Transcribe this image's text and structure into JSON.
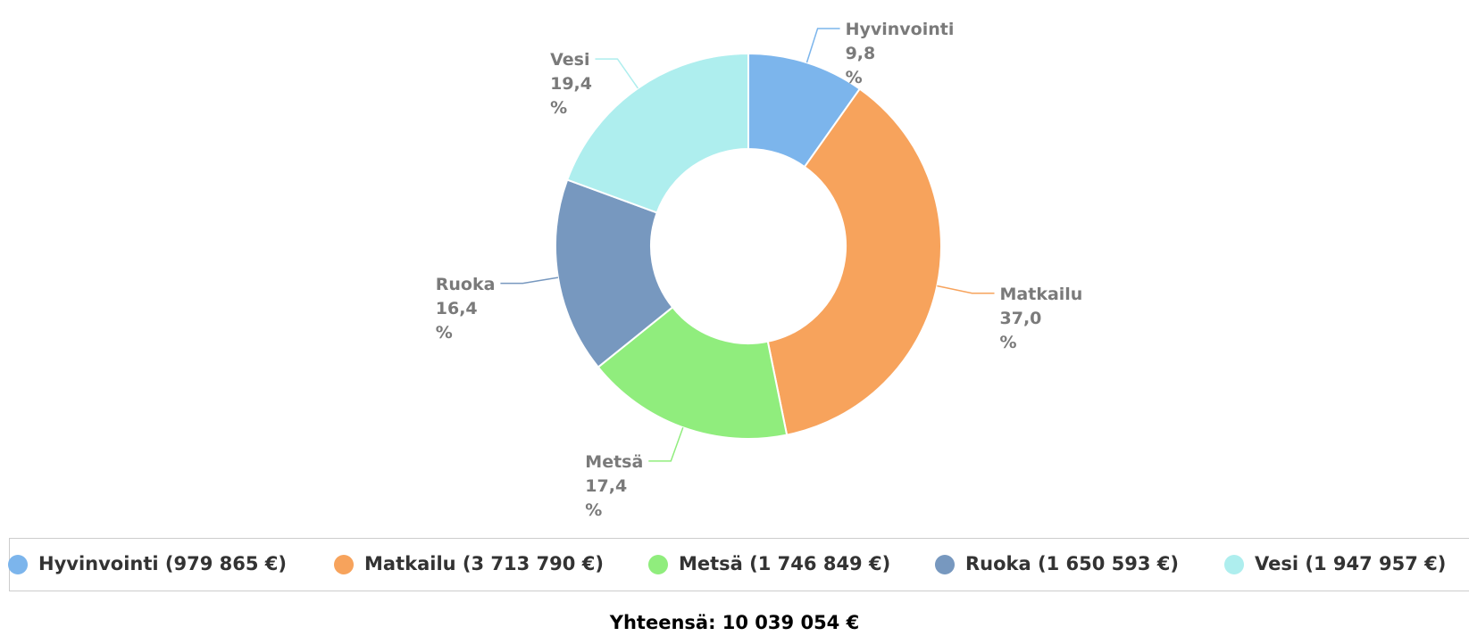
{
  "chart_data": {
    "type": "donut",
    "categories": [
      "Hyvinvointi",
      "Matkailu",
      "Metsä",
      "Ruoka",
      "Vesi"
    ],
    "values": [
      9.8,
      37.0,
      17.4,
      16.4,
      19.4
    ],
    "value_labels": [
      "9,8 %",
      "37,0 %",
      "17,4 %",
      "16,4 %",
      "19,4 %"
    ],
    "colors": [
      "#7cb5ec",
      "#f7a35c",
      "#90ed7d",
      "#7798bf",
      "#aeeeee"
    ],
    "legend_labels": [
      "Hyvinvointi (979 865 €)",
      "Matkailu (3 713 790 €)",
      "Metsä (1 746 849 €)",
      "Ruoka (1 650 593 €)",
      "Vesi (1 947 957 €)"
    ],
    "total": "Yhteensä: 10 039 054 €"
  }
}
